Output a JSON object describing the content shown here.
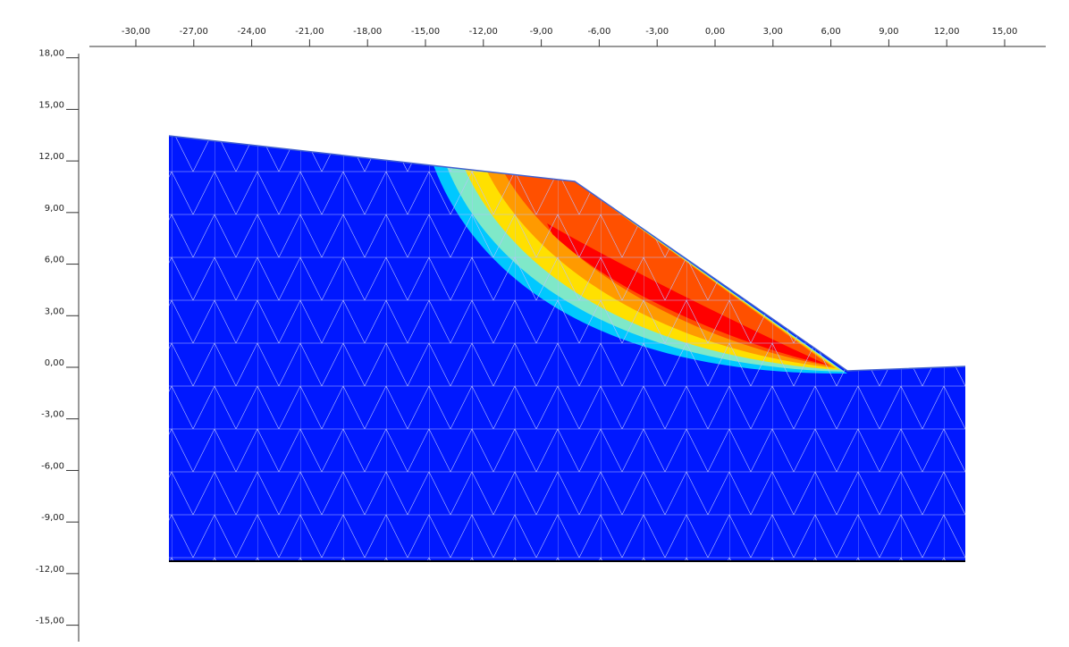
{
  "rulers": {
    "x_ticks": [
      {
        "value": -30,
        "label": "-30,00"
      },
      {
        "value": -27,
        "label": "-27,00"
      },
      {
        "value": -24,
        "label": "-24,00"
      },
      {
        "value": -21,
        "label": "-21,00"
      },
      {
        "value": -18,
        "label": "-18,00"
      },
      {
        "value": -15,
        "label": "-15,00"
      },
      {
        "value": -12,
        "label": "-12,00"
      },
      {
        "value": -9,
        "label": "-9,00"
      },
      {
        "value": -6,
        "label": "-6,00"
      },
      {
        "value": -3,
        "label": "-3,00"
      },
      {
        "value": 0,
        "label": "0,00"
      },
      {
        "value": 3,
        "label": "3,00"
      },
      {
        "value": 6,
        "label": "6,00"
      },
      {
        "value": 9,
        "label": "9,00"
      },
      {
        "value": 12,
        "label": "12,00"
      },
      {
        "value": 15,
        "label": "15,00"
      }
    ],
    "y_ticks": [
      {
        "value": 18,
        "label": "18,00"
      },
      {
        "value": 15,
        "label": "15,00"
      },
      {
        "value": 12,
        "label": "12,00"
      },
      {
        "value": 9,
        "label": "9,00"
      },
      {
        "value": 6,
        "label": "6,00"
      },
      {
        "value": 3,
        "label": "3,00"
      },
      {
        "value": 0,
        "label": "0,00"
      },
      {
        "value": -3,
        "label": "-3,00"
      },
      {
        "value": -6,
        "label": "-6,00"
      },
      {
        "value": -9,
        "label": "-9,00"
      },
      {
        "value": -12,
        "label": "-12,00"
      },
      {
        "value": -15,
        "label": "-15,00"
      }
    ]
  }
}
